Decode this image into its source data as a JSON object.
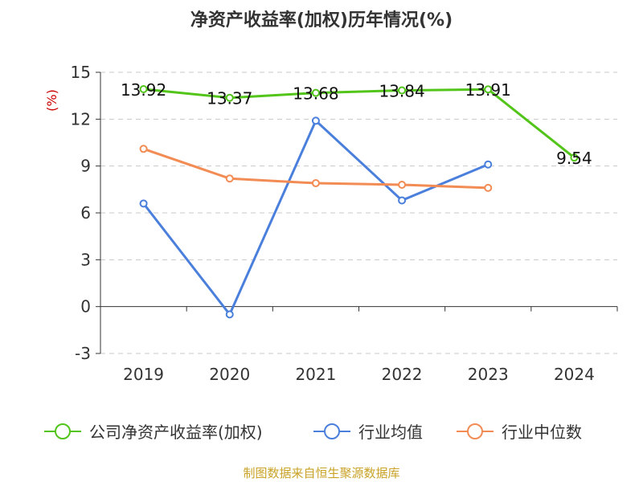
{
  "chart_data": {
    "type": "line",
    "title": "净资产收益率(加权)历年情况(%)",
    "unit_label": "(%)",
    "x": [
      "2019",
      "2020",
      "2021",
      "2022",
      "2023",
      "2024"
    ],
    "yticks": [
      "15",
      "12",
      "9",
      "6",
      "3",
      "0",
      "-3"
    ],
    "ylim": [
      -3,
      15
    ],
    "grid": true,
    "legend_position": "bottom",
    "series": [
      {
        "name": "公司净资产收益率(加权)",
        "color": "#52c41a",
        "values": [
          13.92,
          13.37,
          13.68,
          13.84,
          13.91,
          9.54
        ],
        "labels": [
          "13.92",
          "13.37",
          "13.68",
          "13.84",
          "13.91",
          "9.54"
        ]
      },
      {
        "name": "行业均值",
        "color": "#4a7fdc",
        "values": [
          6.6,
          -0.5,
          11.9,
          6.8,
          9.1,
          null
        ]
      },
      {
        "name": "行业中位数",
        "color": "#f28c54",
        "values": [
          10.1,
          8.2,
          7.9,
          7.8,
          7.6,
          null
        ]
      }
    ]
  },
  "source": "制图数据来自恒生聚源数据库"
}
